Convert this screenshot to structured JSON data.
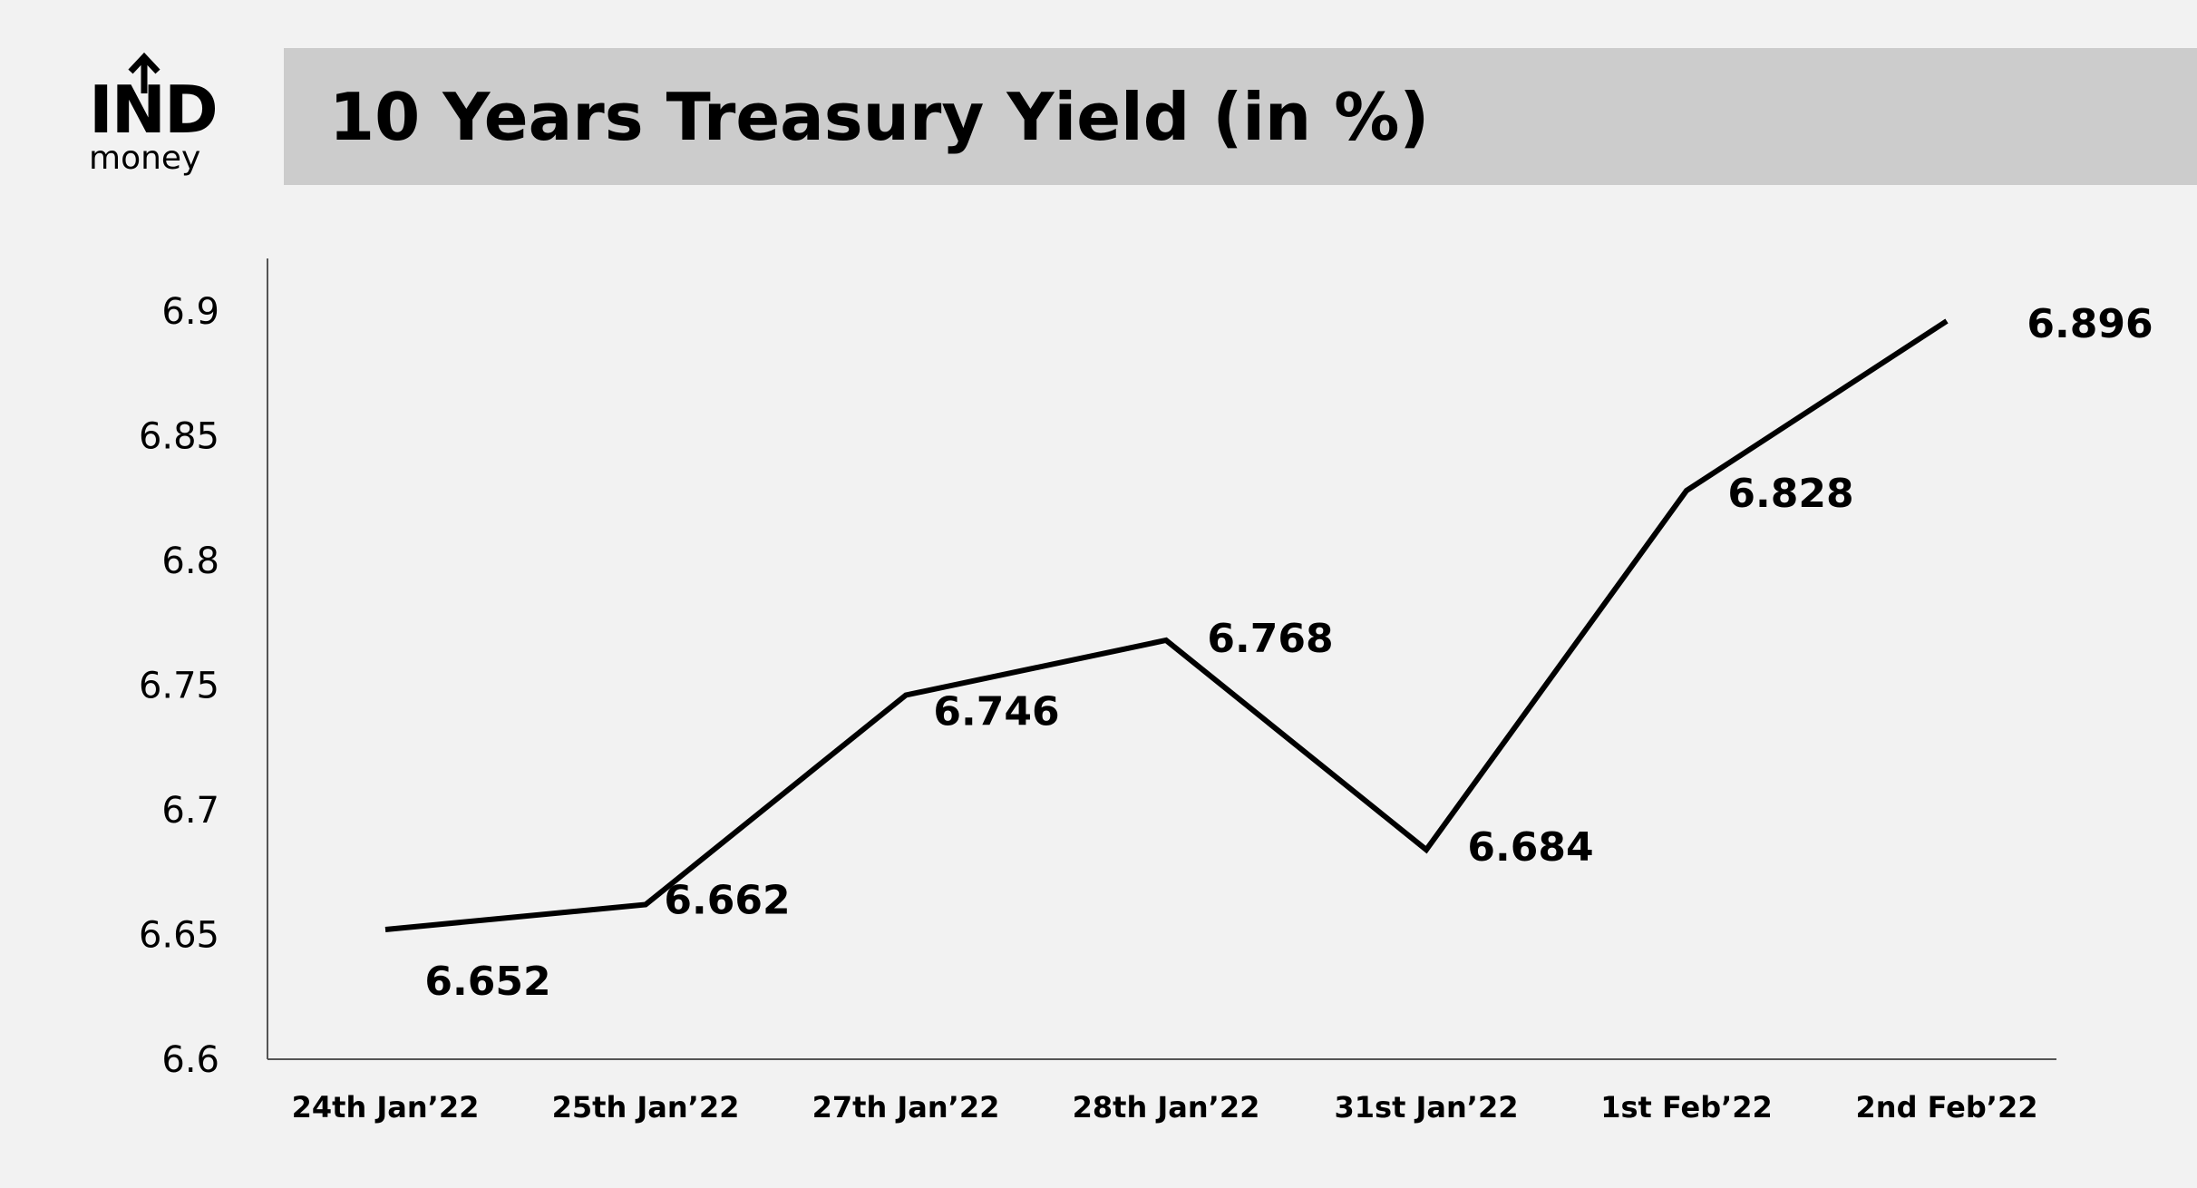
{
  "brand": {
    "logo_mark": "IND",
    "logo_sub": "money",
    "logo_icon": "up-arrow-icon"
  },
  "chart_data": {
    "type": "line",
    "title": "10 Years Treasury Yield (in %)",
    "xlabel": "",
    "ylabel": "",
    "categories": [
      "24th Jan’22",
      "25th Jan’22",
      "27th Jan’22",
      "28th Jan’22",
      "31st Jan’22",
      "1st Feb’22",
      "2nd Feb’22"
    ],
    "series": [
      {
        "values": [
          6.652,
          6.662,
          6.746,
          6.768,
          6.684,
          6.828,
          6.896
        ],
        "labels": [
          "6.652",
          "6.662",
          "6.746",
          "6.768",
          "6.684",
          "6.828",
          "6.896"
        ],
        "color": "#000000"
      }
    ],
    "ylim": [
      6.6,
      6.92
    ],
    "yticks": [
      6.6,
      6.65,
      6.7,
      6.75,
      6.8,
      6.85,
      6.9
    ],
    "ytick_labels": [
      "6.6",
      "6.65",
      "6.7",
      "6.75",
      "6.8",
      "6.85",
      "6.9"
    ],
    "grid": false,
    "legend": "none",
    "data_labels": true
  }
}
